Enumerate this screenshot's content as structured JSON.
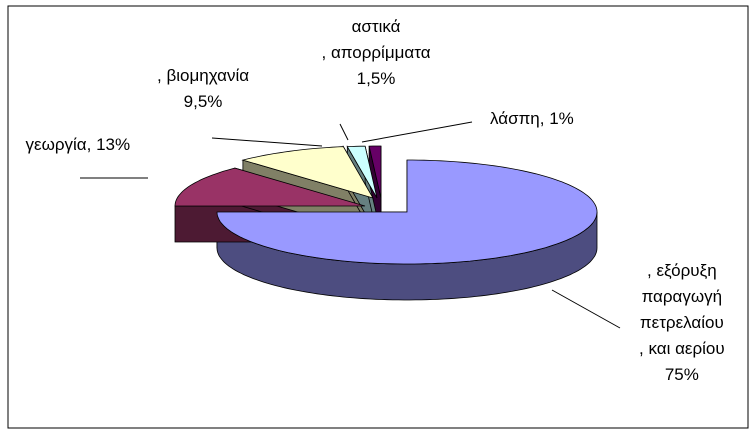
{
  "chart_data": {
    "type": "pie",
    "categories": [
      ", εξόρυξη\nπαραγωγή\nπετρελαίου\n, και αερίου",
      "γεωργία,",
      ", βιομηχανία",
      "αστικά\n, απορρίμματα",
      "λάσπη,"
    ],
    "values": [
      75,
      13,
      9.5,
      1.5,
      1
    ],
    "value_labels": [
      "75%",
      "13%",
      "9,5%",
      "1,5%",
      "1%"
    ],
    "colors": [
      "#9999ff",
      "#993366",
      "#ffffcc",
      "#ccffff",
      "#660066"
    ]
  }
}
